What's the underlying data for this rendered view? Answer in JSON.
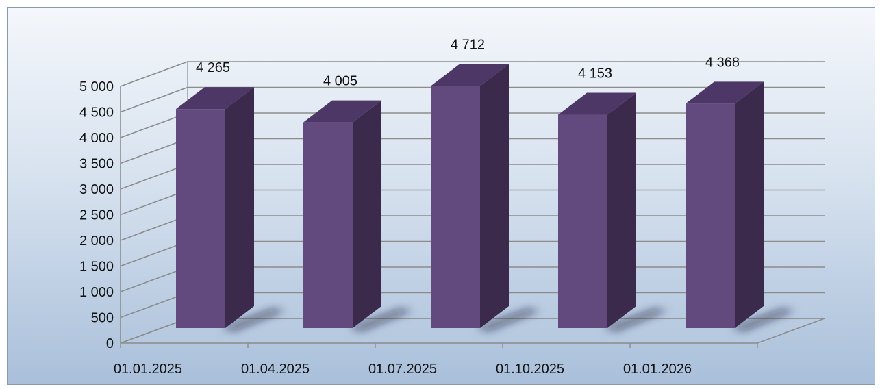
{
  "chart_data": {
    "type": "bar",
    "categories": [
      "01.01.2025",
      "01.04.2025",
      "01.07.2025",
      "01.10.2025",
      "01.01.2026"
    ],
    "values": [
      4265,
      4005,
      4712,
      4153,
      4368
    ],
    "value_labels": [
      "4 265",
      "4 005",
      "4 712",
      "4 153",
      "4 368"
    ],
    "y_ticks": [
      0,
      500,
      1000,
      1500,
      2000,
      2500,
      3000,
      3500,
      4000,
      4500,
      5000
    ],
    "y_tick_labels": [
      "0",
      "500",
      "1 000",
      "1 500",
      "2 000",
      "2 500",
      "3 000",
      "3 500",
      "4 000",
      "4 500",
      "5 000"
    ],
    "ylim": [
      0,
      5000
    ],
    "title": "",
    "xlabel": "",
    "ylabel": "",
    "grid": true,
    "legend": "none",
    "three_d": true
  },
  "colors": {
    "bar_front": "#62497e",
    "bar_side": "#3c2a4c",
    "bar_top": "#4d3766",
    "grid": "#8c8c8c",
    "bg_top": "#f4f7fb",
    "bg_bottom": "#a9bfda"
  }
}
